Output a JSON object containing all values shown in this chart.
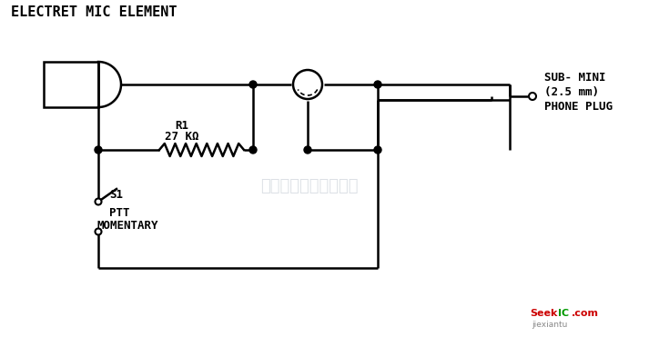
{
  "title": "ELECTRET MIC ELEMENT",
  "bg_color": "#ffffff",
  "line_color": "black",
  "text_color": "black",
  "watermark_text": "杭州将睢科技有限公司",
  "watermark_color": "#c0c8d0",
  "sub_mini_label": [
    "SUB- MINI",
    "(2.5 mm)",
    "PHONE PLUG"
  ],
  "r1_label": [
    "R1",
    "27 KΩ"
  ],
  "s1_label": [
    "S1",
    "PTT",
    "MOMENTARY"
  ]
}
